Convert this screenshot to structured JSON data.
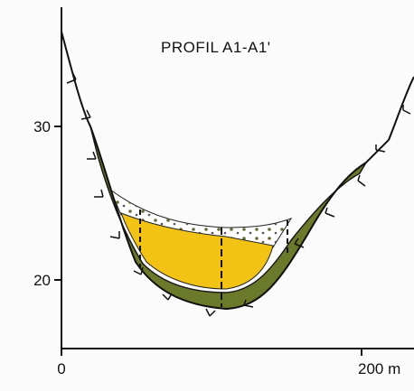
{
  "title": "PROFIL A1-A1'",
  "y_axis": {
    "labels": [
      "30",
      "20"
    ]
  },
  "x_axis": {
    "labels": [
      "0",
      "200 m"
    ]
  }
}
